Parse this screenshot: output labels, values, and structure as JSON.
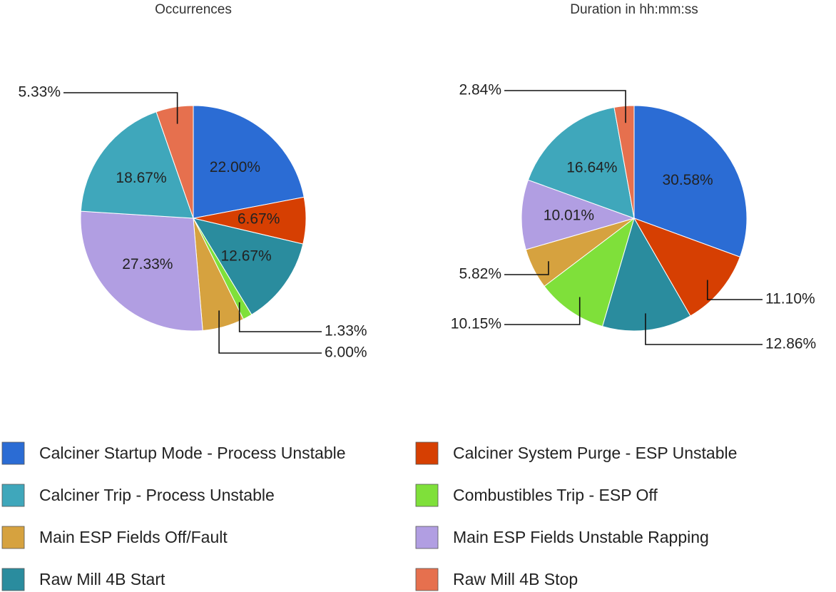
{
  "chart_data": [
    {
      "type": "pie",
      "title": "Occurrences",
      "values": [
        22.0,
        6.67,
        18.67,
        1.33,
        6.0,
        27.33,
        12.67,
        5.33
      ],
      "value_labels": [
        "22.00%",
        "6.67%",
        "18.67%",
        "1.33%",
        "6.00%",
        "27.33%",
        "12.67%",
        "5.33%"
      ]
    },
    {
      "type": "pie",
      "title": "Duration in hh:mm:ss",
      "values": [
        30.58,
        11.1,
        16.64,
        10.15,
        5.82,
        10.01,
        12.86,
        2.84
      ],
      "value_labels": [
        "30.58%",
        "11.10%",
        "16.64%",
        "10.15%",
        "5.82%",
        "10.01%",
        "12.86%",
        "2.84%"
      ]
    }
  ],
  "legend": {
    "categories": [
      "Calciner Startup Mode - Process Unstable",
      "Calciner System Purge - ESP Unstable",
      "Calciner Trip - Process Unstable",
      "Combustibles Trip - ESP Off",
      "Main ESP Fields Off/Fault",
      "Main ESP Fields Unstable Rapping",
      "Raw Mill 4B Start",
      "Raw Mill 4B Stop"
    ],
    "colors": [
      "#2b6cd4",
      "#d63f02",
      "#3fa7bb",
      "#7fe03a",
      "#d6a23f",
      "#b19ee2",
      "#2a8c9e",
      "#e6704e"
    ]
  }
}
